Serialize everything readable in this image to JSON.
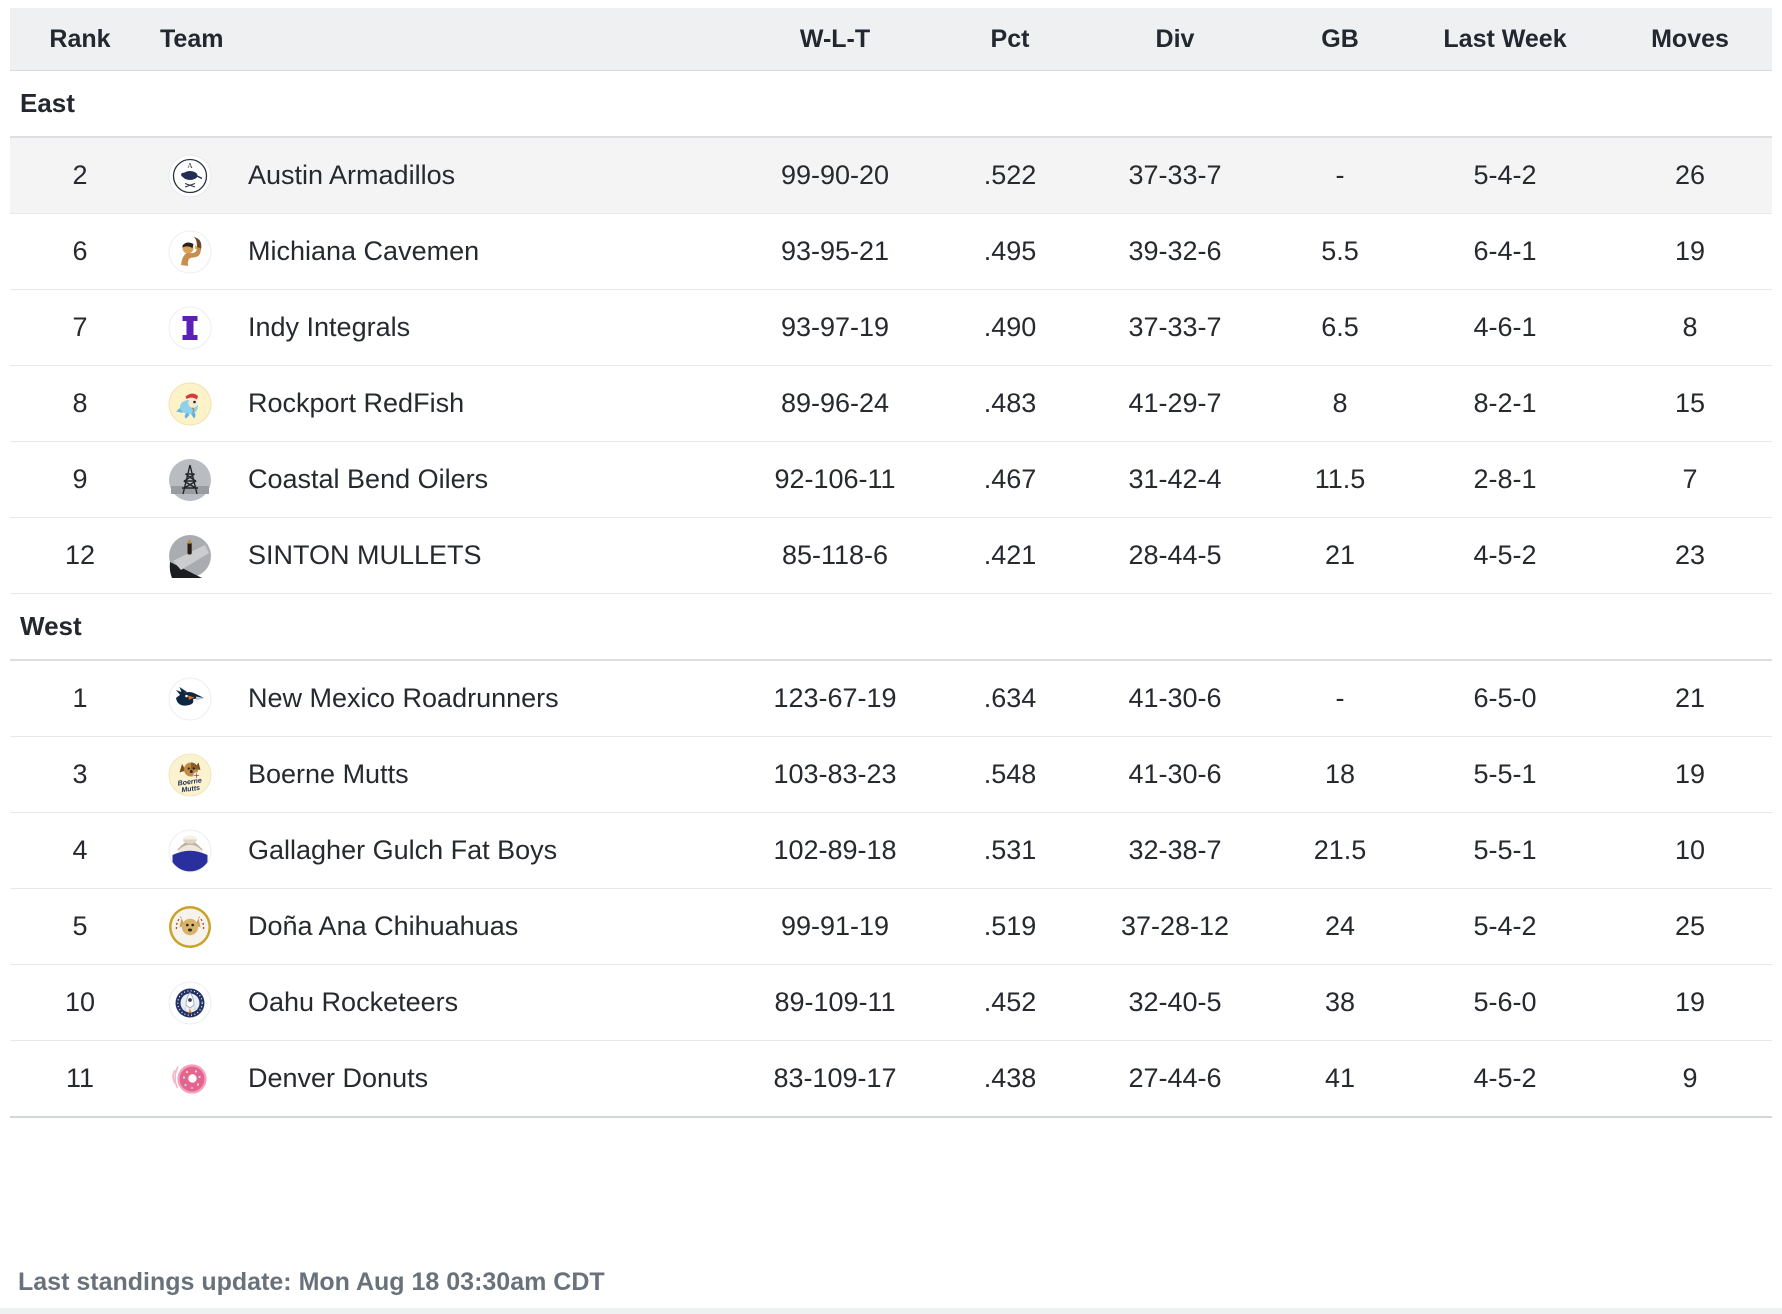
{
  "table": {
    "columns": [
      {
        "key": "rank",
        "label": "Rank"
      },
      {
        "key": "team",
        "label": "Team"
      },
      {
        "key": "wlt",
        "label": "W-L-T"
      },
      {
        "key": "pct",
        "label": "Pct"
      },
      {
        "key": "div",
        "label": "Div"
      },
      {
        "key": "gb",
        "label": "GB"
      },
      {
        "key": "last_week",
        "label": "Last Week"
      },
      {
        "key": "moves",
        "label": "Moves"
      }
    ],
    "sections": [
      {
        "name": "East",
        "teams": [
          {
            "rank": "2",
            "name": "Austin Armadillos",
            "logo": "armadillos-logo",
            "wlt": "99-90-20",
            "pct": ".522",
            "div": "37-33-7",
            "gb": "-",
            "last_week": "5-4-2",
            "moves": "26",
            "highlighted": true
          },
          {
            "rank": "6",
            "name": "Michiana Cavemen",
            "logo": "cavemen-logo",
            "wlt": "93-95-21",
            "pct": ".495",
            "div": "39-32-6",
            "gb": "5.5",
            "last_week": "6-4-1",
            "moves": "19",
            "highlighted": false
          },
          {
            "rank": "7",
            "name": "Indy Integrals",
            "logo": "integrals-logo",
            "wlt": "93-97-19",
            "pct": ".490",
            "div": "37-33-7",
            "gb": "6.5",
            "last_week": "4-6-1",
            "moves": "8",
            "highlighted": false
          },
          {
            "rank": "8",
            "name": "Rockport RedFish",
            "logo": "redfish-logo",
            "wlt": "89-96-24",
            "pct": ".483",
            "div": "41-29-7",
            "gb": "8",
            "last_week": "8-2-1",
            "moves": "15",
            "highlighted": false
          },
          {
            "rank": "9",
            "name": "Coastal Bend Oilers",
            "logo": "oilers-logo",
            "wlt": "92-106-11",
            "pct": ".467",
            "div": "31-42-4",
            "gb": "11.5",
            "last_week": "2-8-1",
            "moves": "7",
            "highlighted": false
          },
          {
            "rank": "12",
            "name": "SINTON MULLETS",
            "logo": "mullets-logo",
            "wlt": "85-118-6",
            "pct": ".421",
            "div": "28-44-5",
            "gb": "21",
            "last_week": "4-5-2",
            "moves": "23",
            "highlighted": false
          }
        ]
      },
      {
        "name": "West",
        "teams": [
          {
            "rank": "1",
            "name": "New Mexico Roadrunners",
            "logo": "roadrunners-logo",
            "wlt": "123-67-19",
            "pct": ".634",
            "div": "41-30-6",
            "gb": "-",
            "last_week": "6-5-0",
            "moves": "21",
            "highlighted": false
          },
          {
            "rank": "3",
            "name": "Boerne Mutts",
            "logo": "mutts-logo",
            "wlt": "103-83-23",
            "pct": ".548",
            "div": "41-30-6",
            "gb": "18",
            "last_week": "5-5-1",
            "moves": "19",
            "highlighted": false
          },
          {
            "rank": "4",
            "name": "Gallagher Gulch Fat Boys",
            "logo": "fat-boys-logo",
            "wlt": "102-89-18",
            "pct": ".531",
            "div": "32-38-7",
            "gb": "21.5",
            "last_week": "5-5-1",
            "moves": "10",
            "highlighted": false
          },
          {
            "rank": "5",
            "name": "Doña Ana Chihuahuas",
            "logo": "chihuahuas-logo",
            "wlt": "99-91-19",
            "pct": ".519",
            "div": "37-28-12",
            "gb": "24",
            "last_week": "5-4-2",
            "moves": "25",
            "highlighted": false
          },
          {
            "rank": "10",
            "name": "Oahu Rocketeers",
            "logo": "rocketeers-logo",
            "wlt": "89-109-11",
            "pct": ".452",
            "div": "32-40-5",
            "gb": "38",
            "last_week": "5-6-0",
            "moves": "19",
            "highlighted": false
          },
          {
            "rank": "11",
            "name": "Denver Donuts",
            "logo": "donuts-logo",
            "wlt": "83-109-17",
            "pct": ".438",
            "div": "27-44-6",
            "gb": "41",
            "last_week": "4-5-2",
            "moves": "9",
            "highlighted": false
          }
        ]
      }
    ]
  },
  "footer": {
    "last_update": "Last standings update: Mon Aug 18 03:30am CDT"
  },
  "colors": {
    "header_bg": "#eef0f2",
    "row_highlight_bg": "#f4f4f5",
    "row_border": "#e7e8ea",
    "section_border": "#dcdee1",
    "text": "#26292e",
    "footer_text": "#69727b"
  }
}
